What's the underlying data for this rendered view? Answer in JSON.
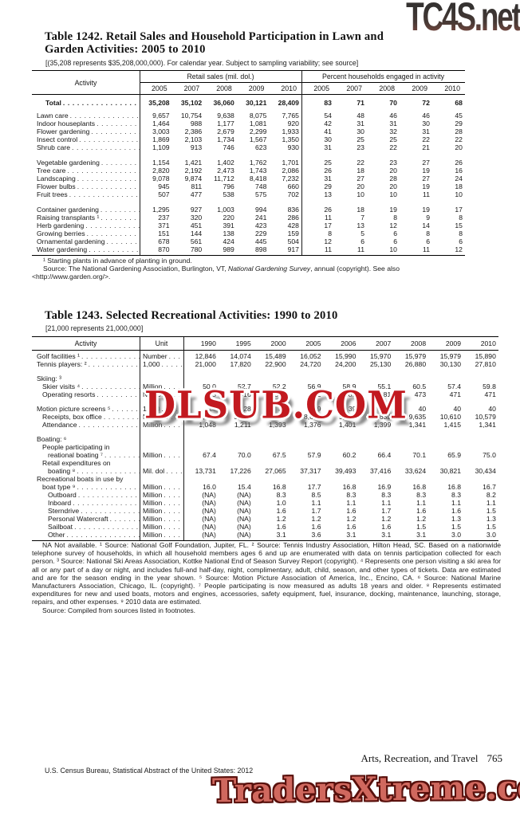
{
  "watermarks": {
    "top": "TC4S.net",
    "middle": "DLSUB.COM",
    "bottom": "TradersXtreme.com"
  },
  "footer": {
    "section": "Arts, Recreation, and Travel",
    "page": "765",
    "credit": "U.S. Census Bureau, Statistical Abstract of the United States: 2012"
  },
  "table1242": {
    "title_line1": "Table 1242. Retail Sales and Household Participation in Lawn and",
    "title_line2": "Garden Activities: 2005 to 2010",
    "note": "[(35,208 represents $35,208,000,000). For calendar year. Subject to sampling variability; see source]",
    "stub_header": "Activity",
    "group1_header": "Retail sales (mil. dol.)",
    "group2_header": "Percent households engaged in activity",
    "years": [
      "2005",
      "2007",
      "2008",
      "2009",
      "2010"
    ],
    "total": {
      "label": "Total",
      "retail": [
        "35,208",
        "35,102",
        "36,060",
        "30,121",
        "28,409"
      ],
      "percent": [
        "83",
        "71",
        "70",
        "72",
        "68"
      ]
    },
    "rows": [
      {
        "label": "Lawn care",
        "retail": [
          "9,657",
          "10,754",
          "9,638",
          "8,075",
          "7,765"
        ],
        "percent": [
          "54",
          "48",
          "46",
          "46",
          "45"
        ]
      },
      {
        "label": "Indoor houseplants",
        "retail": [
          "1,464",
          "988",
          "1,177",
          "1,081",
          "920"
        ],
        "percent": [
          "42",
          "31",
          "31",
          "30",
          "29"
        ]
      },
      {
        "label": "Flower gardening",
        "retail": [
          "3,003",
          "2,386",
          "2,679",
          "2,299",
          "1,933"
        ],
        "percent": [
          "41",
          "30",
          "32",
          "31",
          "28"
        ]
      },
      {
        "label": "Insect control",
        "retail": [
          "1,869",
          "2,103",
          "1,734",
          "1,567",
          "1,350"
        ],
        "percent": [
          "30",
          "25",
          "25",
          "22",
          "22"
        ]
      },
      {
        "label": "Shrub care",
        "retail": [
          "1,109",
          "913",
          "746",
          "623",
          "930"
        ],
        "percent": [
          "31",
          "23",
          "22",
          "21",
          "20"
        ]
      },
      {
        "label": "Vegetable gardening",
        "gap_before": true,
        "retail": [
          "1,154",
          "1,421",
          "1,402",
          "1,762",
          "1,701"
        ],
        "percent": [
          "25",
          "22",
          "23",
          "27",
          "26"
        ]
      },
      {
        "label": "Tree care",
        "retail": [
          "2,820",
          "2,192",
          "2,473",
          "1,743",
          "2,086"
        ],
        "percent": [
          "26",
          "18",
          "20",
          "19",
          "16"
        ]
      },
      {
        "label": "Landscaping",
        "retail": [
          "9,078",
          "9,874",
          "11,712",
          "8,418",
          "7,232"
        ],
        "percent": [
          "31",
          "27",
          "28",
          "27",
          "24"
        ]
      },
      {
        "label": "Flower bulbs",
        "retail": [
          "945",
          "811",
          "796",
          "748",
          "660"
        ],
        "percent": [
          "29",
          "20",
          "20",
          "19",
          "18"
        ]
      },
      {
        "label": "Fruit trees",
        "retail": [
          "507",
          "477",
          "538",
          "575",
          "702"
        ],
        "percent": [
          "13",
          "10",
          "10",
          "11",
          "10"
        ]
      },
      {
        "label": "Container gardening",
        "gap_before": true,
        "retail": [
          "1,295",
          "927",
          "1,003",
          "994",
          "836"
        ],
        "percent": [
          "26",
          "18",
          "19",
          "19",
          "17"
        ]
      },
      {
        "label": "Raising transplants ¹",
        "retail": [
          "237",
          "320",
          "220",
          "241",
          "286"
        ],
        "percent": [
          "11",
          "7",
          "8",
          "9",
          "8"
        ]
      },
      {
        "label": "Herb gardening",
        "retail": [
          "371",
          "451",
          "391",
          "423",
          "428"
        ],
        "percent": [
          "17",
          "13",
          "12",
          "14",
          "15"
        ]
      },
      {
        "label": "Growing berries",
        "retail": [
          "151",
          "144",
          "138",
          "229",
          "159"
        ],
        "percent": [
          "8",
          "5",
          "6",
          "8",
          "8"
        ]
      },
      {
        "label": "Ornamental gardening",
        "retail": [
          "678",
          "561",
          "424",
          "445",
          "504"
        ],
        "percent": [
          "12",
          "6",
          "6",
          "6",
          "6"
        ]
      },
      {
        "label": "Water gardening",
        "retail": [
          "870",
          "780",
          "989",
          "898",
          "917"
        ],
        "percent": [
          "11",
          "11",
          "10",
          "11",
          "12"
        ]
      }
    ],
    "footnote1": "¹ Starting plants in advance of planting in ground.",
    "source_pre": "Source: The National Gardening Association, Burlington, VT, ",
    "source_italic": "National Gardening Survey",
    "source_post": ", annual (copyright). See also",
    "source_line2": "<http://www.garden.org/>."
  },
  "table1243": {
    "title": "Table 1243. Selected Recreational Activities: 1990 to 2010",
    "note": "[21,000 represents 21,000,000]",
    "stub_header": "Activity",
    "unit_header": "Unit",
    "years": [
      "1990",
      "1995",
      "2000",
      "2005",
      "2006",
      "2007",
      "2008",
      "2009",
      "2010"
    ],
    "rows": [
      {
        "lines": [
          "Golf facilities ¹"
        ],
        "indents": [
          0
        ],
        "unit": "Number",
        "values": [
          "12,846",
          "14,074",
          "15,489",
          "16,052",
          "15,990",
          "15,970",
          "15,979",
          "15,979",
          "15,890"
        ]
      },
      {
        "lines": [
          "Tennis players: ²"
        ],
        "indents": [
          0
        ],
        "unit": "1,000",
        "values": [
          "21,000",
          "17,820",
          "22,900",
          "24,720",
          "24,200",
          "25,130",
          "26,880",
          "30,130",
          "27,810"
        ]
      },
      {
        "lines": [
          "Skiing: ³"
        ],
        "indents": [
          0
        ],
        "unit": "",
        "values": null,
        "gap_before": true
      },
      {
        "lines": [
          "Skier visits ⁴"
        ],
        "indents": [
          1
        ],
        "unit": "Million",
        "values": [
          "50.0",
          "52.7",
          "52.2",
          "56.9",
          "58.9",
          "55.1",
          "60.5",
          "57.4",
          "59.8"
        ]
      },
      {
        "lines": [
          "Operating resorts"
        ],
        "indents": [
          1
        ],
        "unit": "Number",
        "values": [
          "705",
          "516",
          "503",
          "492",
          "485",
          "481",
          "473",
          "471",
          "471"
        ]
      },
      {
        "lines": [
          "Motion picture screens ⁵"
        ],
        "indents": [
          0
        ],
        "unit": "1,000",
        "values": [
          "24",
          "28",
          "37",
          "39",
          "39",
          "40",
          "40",
          "40",
          "40"
        ],
        "gap_before": true
      },
      {
        "lines": [
          "Receipts, box office"
        ],
        "indents": [
          1
        ],
        "unit": "Mil. dol",
        "values": [
          "4,426",
          "5,265",
          "7,511",
          "8,621",
          "9,160",
          "9,632",
          "9,635",
          "10,610",
          "10,579"
        ]
      },
      {
        "lines": [
          "Attendance"
        ],
        "indents": [
          1
        ],
        "unit": "Million",
        "values": [
          "1,048",
          "1,211",
          "1,393",
          "1,376",
          "1,401",
          "1,399",
          "1,341",
          "1,415",
          "1,341"
        ]
      },
      {
        "lines": [
          "Boating: ⁶"
        ],
        "indents": [
          0
        ],
        "unit": "",
        "values": null,
        "gap_before": true
      },
      {
        "lines": [
          "People participating in",
          "reational boating ⁷"
        ],
        "indents": [
          1,
          2
        ],
        "unit": "Million",
        "values": [
          "67.4",
          "70.0",
          "67.5",
          "57.9",
          "60.2",
          "66.4",
          "70.1",
          "65.9",
          "75.0"
        ]
      },
      {
        "lines": [
          "Retail expenditures on",
          "boating ⁸"
        ],
        "indents": [
          1,
          2
        ],
        "unit": "Mil. dol",
        "values": [
          "13,731",
          "17,226",
          "27,065",
          "37,317",
          "39,493",
          "37,416",
          "33,624",
          "30,821",
          "30,434"
        ]
      },
      {
        "lines": [
          "Recreational boats in use by",
          "boat type ⁹"
        ],
        "indents": [
          0,
          1
        ],
        "unit": "Million",
        "values": [
          "16.0",
          "15.4",
          "16.8",
          "17.7",
          "16.8",
          "16.9",
          "16.8",
          "16.8",
          "16.7"
        ]
      },
      {
        "lines": [
          "Outboard"
        ],
        "indents": [
          2
        ],
        "unit": "Million",
        "values": [
          "(NA)",
          "(NA)",
          "8.3",
          "8.5",
          "8.3",
          "8.3",
          "8.3",
          "8.3",
          "8.2"
        ]
      },
      {
        "lines": [
          "Inboard"
        ],
        "indents": [
          2
        ],
        "unit": "Million",
        "values": [
          "(NA)",
          "(NA)",
          "1.0",
          "1.1",
          "1.1",
          "1.1",
          "1.1",
          "1.1",
          "1.1"
        ]
      },
      {
        "lines": [
          "Sterndrive"
        ],
        "indents": [
          2
        ],
        "unit": "Million",
        "values": [
          "(NA)",
          "(NA)",
          "1.6",
          "1.7",
          "1.6",
          "1.7",
          "1.6",
          "1.6",
          "1.5"
        ]
      },
      {
        "lines": [
          "Personal Watercraft"
        ],
        "indents": [
          2
        ],
        "unit": "Million",
        "values": [
          "(NA)",
          "(NA)",
          "1.2",
          "1.2",
          "1.2",
          "1.2",
          "1.2",
          "1.3",
          "1.3"
        ]
      },
      {
        "lines": [
          "Sailboat"
        ],
        "indents": [
          2
        ],
        "unit": "Million",
        "values": [
          "(NA)",
          "(NA)",
          "1.6",
          "1.6",
          "1.6",
          "1.6",
          "1.5",
          "1.5",
          "1.5"
        ]
      },
      {
        "lines": [
          "Other"
        ],
        "indents": [
          2
        ],
        "unit": "Million",
        "values": [
          "(NA)",
          "(NA)",
          "3.1",
          "3.6",
          "3.1",
          "3.1",
          "3.1",
          "3.0",
          "3.0"
        ]
      }
    ],
    "footnotes": "NA Not available. ¹ Source: National Golf Foundation, Jupiter, FL. ² Source: Tennis Industry Association, Hilton Head, SC. Based on a nationwide telephone survey of households, in which all household members ages 6 and up are enumerated with data on tennis participation collected for each person. ³ Source: National Ski Areas Association, Kottke National End of Season Survey Report (copyright). ⁴ Represents one person visiting a ski area for all or any part of a day or night, and  includes full-and half-day, night, complimentary, adult, child, season, and other types of tickets. Data are estimated and are for the season ending in the year shown. ⁵ Source: Motion Picture Association of America, Inc., Encino, CA. ⁶ Source: National Marine Manufacturers Association, Chicago, IL. (copyright). ⁷ People participating is now measured as adults 18 years and older. ⁸ Represents estimated expenditures for new and used boats, motors and engines, accessories, safety equipment, fuel, insurance, docking, maintenance, launching, storage, repairs, and other expenses. ⁹ 2010 data are estimated.",
    "source": "Source: Compiled from sources listed in footnotes."
  }
}
